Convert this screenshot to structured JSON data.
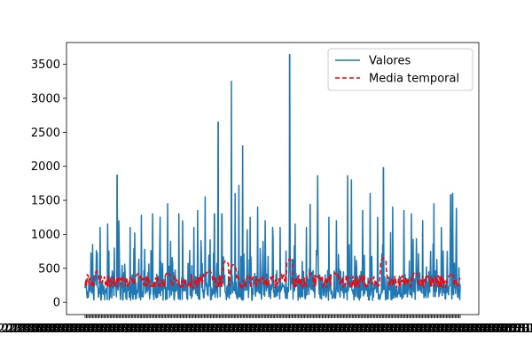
{
  "chart_data": {
    "type": "line",
    "title": "",
    "xlabel": "",
    "ylabel": "",
    "ylim": [
      -180,
      3820
    ],
    "y_ticks": [
      0,
      500,
      1000,
      1500,
      2000,
      2500,
      3000,
      3500
    ],
    "y_tick_labels": [
      "0",
      "500",
      "1000",
      "1500",
      "2000",
      "2500",
      "3000",
      "3500"
    ],
    "x_tick_labels_note": "dense overlapping date-like tick labels rendered illegible",
    "grid": false,
    "legend": {
      "placement": "top-right",
      "entries": [
        "Valores",
        "Media temporal"
      ]
    },
    "series": [
      {
        "name": "Valores",
        "color": "#1f77b4",
        "style": "solid",
        "baseline_range": [
          30,
          500
        ],
        "peaks": [
          {
            "x": 0.02,
            "y": 850
          },
          {
            "x": 0.04,
            "y": 1100
          },
          {
            "x": 0.06,
            "y": 1150
          },
          {
            "x": 0.085,
            "y": 1870
          },
          {
            "x": 0.09,
            "y": 1200
          },
          {
            "x": 0.12,
            "y": 1100
          },
          {
            "x": 0.15,
            "y": 1280
          },
          {
            "x": 0.18,
            "y": 1300
          },
          {
            "x": 0.2,
            "y": 1250
          },
          {
            "x": 0.22,
            "y": 1450
          },
          {
            "x": 0.25,
            "y": 1300
          },
          {
            "x": 0.26,
            "y": 1200
          },
          {
            "x": 0.29,
            "y": 1100
          },
          {
            "x": 0.3,
            "y": 1350
          },
          {
            "x": 0.32,
            "y": 1550
          },
          {
            "x": 0.345,
            "y": 1300
          },
          {
            "x": 0.355,
            "y": 2650
          },
          {
            "x": 0.365,
            "y": 1300
          },
          {
            "x": 0.39,
            "y": 3250
          },
          {
            "x": 0.4,
            "y": 1600
          },
          {
            "x": 0.41,
            "y": 1720
          },
          {
            "x": 0.42,
            "y": 2300
          },
          {
            "x": 0.44,
            "y": 1250
          },
          {
            "x": 0.46,
            "y": 1400
          },
          {
            "x": 0.48,
            "y": 1200
          },
          {
            "x": 0.5,
            "y": 1100
          },
          {
            "x": 0.52,
            "y": 1100
          },
          {
            "x": 0.545,
            "y": 3640
          },
          {
            "x": 0.56,
            "y": 1150
          },
          {
            "x": 0.59,
            "y": 1100
          },
          {
            "x": 0.6,
            "y": 1440
          },
          {
            "x": 0.62,
            "y": 1860
          },
          {
            "x": 0.65,
            "y": 1250
          },
          {
            "x": 0.67,
            "y": 1200
          },
          {
            "x": 0.7,
            "y": 1860
          },
          {
            "x": 0.71,
            "y": 1800
          },
          {
            "x": 0.74,
            "y": 1350
          },
          {
            "x": 0.76,
            "y": 1600
          },
          {
            "x": 0.78,
            "y": 1250
          },
          {
            "x": 0.795,
            "y": 1980
          },
          {
            "x": 0.82,
            "y": 1400
          },
          {
            "x": 0.85,
            "y": 1350
          },
          {
            "x": 0.87,
            "y": 1300
          },
          {
            "x": 0.9,
            "y": 1200
          },
          {
            "x": 0.93,
            "y": 1450
          },
          {
            "x": 0.95,
            "y": 1100
          },
          {
            "x": 0.975,
            "y": 1580
          },
          {
            "x": 0.98,
            "y": 1600
          },
          {
            "x": 0.99,
            "y": 1380
          }
        ]
      },
      {
        "name": "Media temporal",
        "color": "#ff0000",
        "style": "dashed",
        "typical_range": [
          150,
          450
        ],
        "peaks": [
          {
            "x": 0.03,
            "y": 460
          },
          {
            "x": 0.14,
            "y": 420
          },
          {
            "x": 0.22,
            "y": 450
          },
          {
            "x": 0.33,
            "y": 480
          },
          {
            "x": 0.375,
            "y": 620
          },
          {
            "x": 0.395,
            "y": 560
          },
          {
            "x": 0.545,
            "y": 640
          },
          {
            "x": 0.6,
            "y": 430
          },
          {
            "x": 0.665,
            "y": 440
          },
          {
            "x": 0.795,
            "y": 660
          },
          {
            "x": 0.88,
            "y": 450
          },
          {
            "x": 0.975,
            "y": 420
          }
        ]
      }
    ]
  }
}
